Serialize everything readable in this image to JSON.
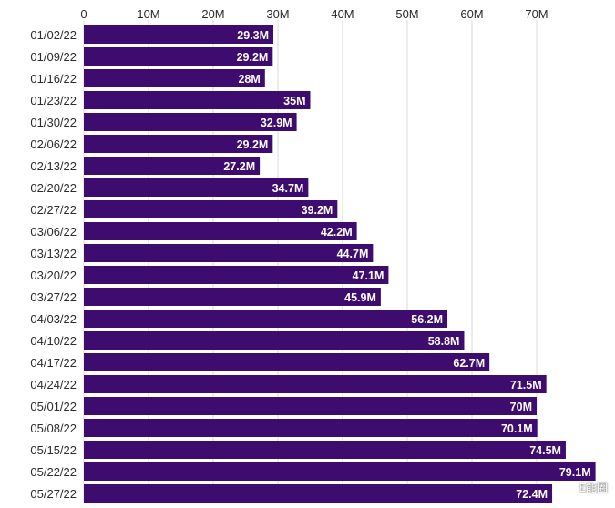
{
  "chart_data": {
    "type": "bar",
    "orientation": "horizontal",
    "title": "",
    "xlabel": "",
    "ylabel": "",
    "xlim": [
      0,
      80
    ],
    "grid": true,
    "bar_color": "#3d0c6e",
    "ticks": [
      {
        "value": 0,
        "label": "0"
      },
      {
        "value": 10,
        "label": "10M"
      },
      {
        "value": 20,
        "label": "20M"
      },
      {
        "value": 30,
        "label": "30M"
      },
      {
        "value": 40,
        "label": "40M"
      },
      {
        "value": 50,
        "label": "50M"
      },
      {
        "value": 60,
        "label": "60M"
      },
      {
        "value": 70,
        "label": "70M"
      }
    ],
    "categories": [
      "01/02/22",
      "01/09/22",
      "01/16/22",
      "01/23/22",
      "01/30/22",
      "02/06/22",
      "02/13/22",
      "02/20/22",
      "02/27/22",
      "03/06/22",
      "03/13/22",
      "03/20/22",
      "03/27/22",
      "04/03/22",
      "04/10/22",
      "04/17/22",
      "04/24/22",
      "05/01/22",
      "05/08/22",
      "05/15/22",
      "05/22/22",
      "05/27/22"
    ],
    "values": [
      29.3,
      29.2,
      28,
      35,
      32.9,
      29.2,
      27.2,
      34.7,
      39.2,
      42.2,
      44.7,
      47.1,
      45.9,
      56.2,
      58.8,
      62.7,
      71.5,
      70,
      70.1,
      74.5,
      79.1,
      72.4
    ],
    "data_labels": [
      "29.3M",
      "29.2M",
      "28M",
      "35M",
      "32.9M",
      "29.2M",
      "27.2M",
      "34.7M",
      "39.2M",
      "42.2M",
      "44.7M",
      "47.1M",
      "45.9M",
      "56.2M",
      "58.8M",
      "62.7M",
      "71.5M",
      "70M",
      "70.1M",
      "74.5M",
      "79.1M",
      "72.4M"
    ]
  },
  "watermark": {
    "text": "E能圈"
  }
}
